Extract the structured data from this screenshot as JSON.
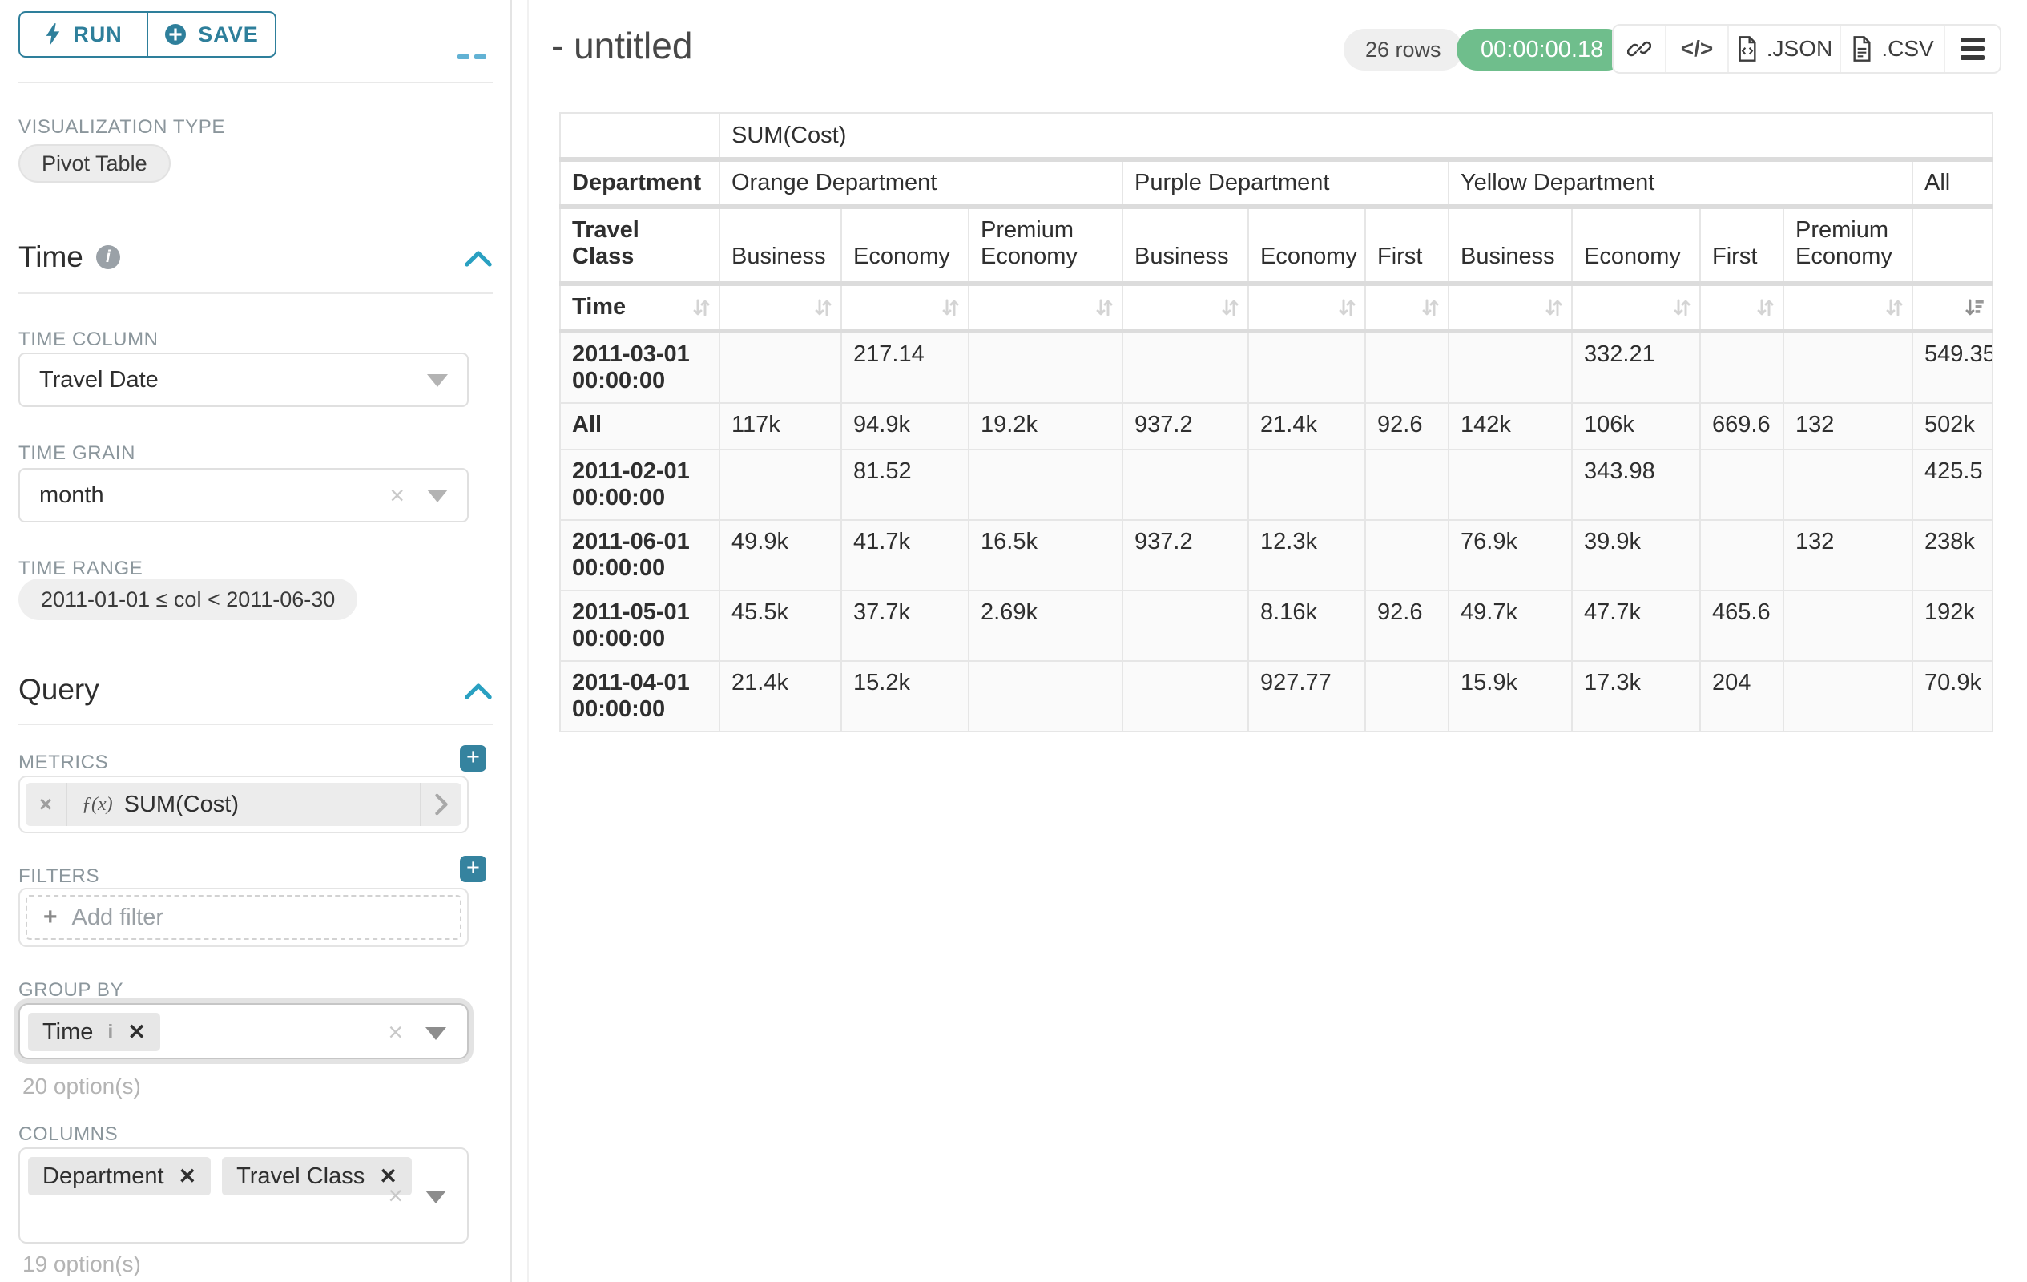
{
  "sidebar": {
    "run_button": "RUN",
    "save_button": "SAVE",
    "chart_type_heading": "Chart Type",
    "visualization_type_label": "VISUALIZATION TYPE",
    "visualization_type_value": "Pivot Table",
    "time": {
      "section_title": "Time",
      "time_column_label": "TIME COLUMN",
      "time_column_value": "Travel Date",
      "time_grain_label": "TIME GRAIN",
      "time_grain_value": "month",
      "time_range_label": "TIME RANGE",
      "time_range_value": "2011-01-01 ≤ col < 2011-06-30"
    },
    "query": {
      "section_title": "Query",
      "metrics_label": "METRICS",
      "metric_fx": "ƒ(x)",
      "metric_value": "SUM(Cost)",
      "filters_label": "FILTERS",
      "add_filter_placeholder": "Add filter",
      "group_by_label": "GROUP BY",
      "group_by_chips": [
        "Time"
      ],
      "group_by_helper": "20 option(s)",
      "columns_label": "COLUMNS",
      "columns_chips": [
        "Department",
        "Travel Class"
      ],
      "columns_helper": "19 option(s)"
    }
  },
  "header": {
    "title": "- untitled",
    "row_count": "26 rows",
    "elapsed_time": "00:00:00.18",
    "export_json_label": ".JSON",
    "export_csv_label": ".CSV"
  },
  "pivot_table": {
    "metric_header": "SUM(Cost)",
    "row_dimension_label": "Department",
    "secondary_dimension_label": "Travel Class",
    "time_label": "Time",
    "column_groups": [
      {
        "label": "Orange Department",
        "children": [
          "Business",
          "Economy",
          "Premium Economy"
        ]
      },
      {
        "label": "Purple Department",
        "children": [
          "Business",
          "Economy",
          "First"
        ]
      },
      {
        "label": "Yellow Department",
        "children": [
          "Business",
          "Economy",
          "First",
          "Premium Economy"
        ]
      },
      {
        "label": "All",
        "children": [
          ""
        ]
      }
    ],
    "rows": [
      {
        "label": "2011-03-01 00:00:00",
        "values": [
          "",
          "217.14",
          "",
          "",
          "",
          "",
          "",
          "332.21",
          "",
          "",
          "549.35"
        ]
      },
      {
        "label": "All",
        "values": [
          "117k",
          "94.9k",
          "19.2k",
          "937.2",
          "21.4k",
          "92.6",
          "142k",
          "106k",
          "669.6",
          "132",
          "502k"
        ]
      },
      {
        "label": "2011-02-01 00:00:00",
        "values": [
          "",
          "81.52",
          "",
          "",
          "",
          "",
          "",
          "343.98",
          "",
          "",
          "425.5"
        ]
      },
      {
        "label": "2011-06-01 00:00:00",
        "values": [
          "49.9k",
          "41.7k",
          "16.5k",
          "937.2",
          "12.3k",
          "",
          "76.9k",
          "39.9k",
          "",
          "132",
          "238k"
        ]
      },
      {
        "label": "2011-05-01 00:00:00",
        "values": [
          "45.5k",
          "37.7k",
          "2.69k",
          "",
          "8.16k",
          "92.6",
          "49.7k",
          "47.7k",
          "465.6",
          "",
          "192k"
        ]
      },
      {
        "label": "2011-04-01 00:00:00",
        "values": [
          "21.4k",
          "15.2k",
          "",
          "",
          "927.77",
          "",
          "15.9k",
          "17.3k",
          "204",
          "",
          "70.9k"
        ]
      }
    ],
    "sorted_column": "All",
    "sort_direction": "descending"
  },
  "colors": {
    "accent_teal": "#2e7f9b",
    "plus_button_teal": "#35839f",
    "chevron_teal": "#29a0c1",
    "timer_green": "#6fbe8c",
    "label_gray": "#8b969c"
  }
}
